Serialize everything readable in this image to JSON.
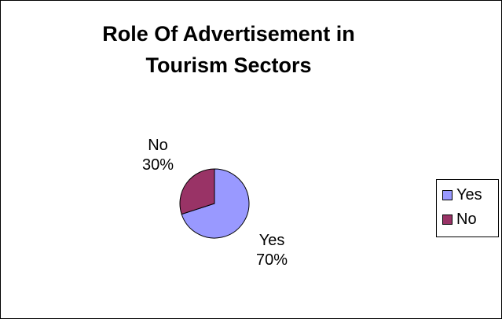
{
  "chart_data": {
    "type": "pie",
    "title_lines": [
      "Role Of Advertisement in",
      "Tourism Sectors"
    ],
    "slices": [
      {
        "name": "Yes",
        "value": 70,
        "label_pct": "70%",
        "color": "#9999ff"
      },
      {
        "name": "No",
        "value": 30,
        "label_pct": "30%",
        "color": "#993366"
      }
    ],
    "legend_placement": "right",
    "edge_color": "#000000"
  }
}
